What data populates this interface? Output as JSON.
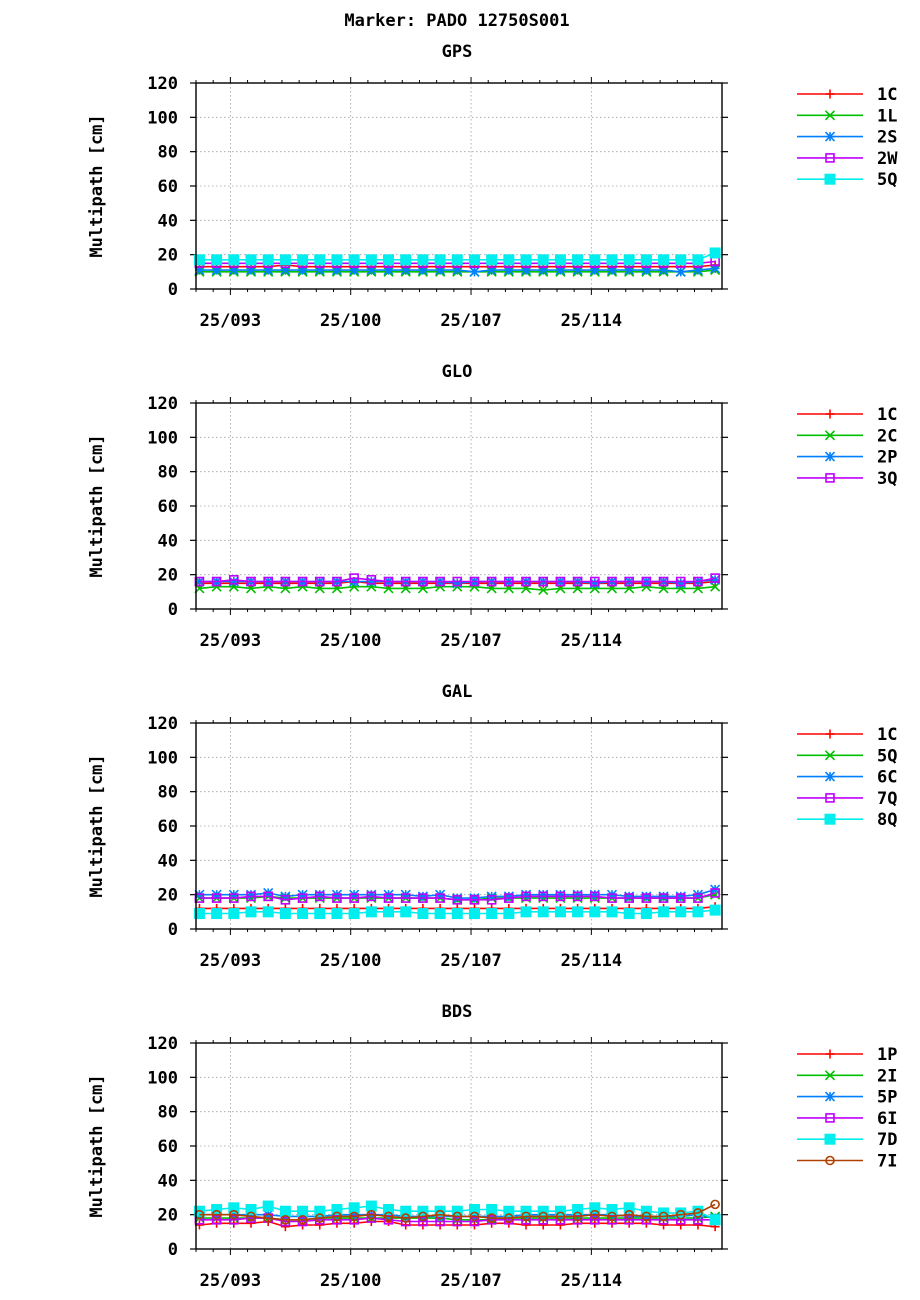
{
  "figure_title": "Marker: PADO 12750S001",
  "chart_data": [
    {
      "type": "line",
      "title": "GPS",
      "ylabel": "Multipath [cm]",
      "xlabel": "",
      "ylim": [
        0,
        120
      ],
      "yticks": [
        0,
        20,
        40,
        60,
        80,
        100,
        120
      ],
      "xlim": [
        91,
        121.6
      ],
      "xticks": [
        {
          "value": 93,
          "label": "25/093"
        },
        {
          "value": 100,
          "label": "25/100"
        },
        {
          "value": 107,
          "label": "25/107"
        },
        {
          "value": 114,
          "label": "25/114"
        }
      ],
      "grid": true,
      "legend_position": "right",
      "x": [
        91.2,
        92.2,
        93.2,
        94.2,
        95.2,
        96.2,
        97.2,
        98.2,
        99.2,
        100.2,
        101.2,
        102.2,
        103.2,
        104.2,
        105.2,
        106.2,
        107.2,
        108.2,
        109.2,
        110.2,
        111.2,
        112.2,
        113.2,
        114.2,
        115.2,
        116.2,
        117.2,
        118.2,
        119.2,
        120.2,
        121.2
      ],
      "series": [
        {
          "name": "1C",
          "color": "#ff0000",
          "marker": "plus",
          "values": [
            13,
            13,
            13,
            13,
            13,
            14,
            13,
            13,
            13,
            13,
            13,
            13,
            13,
            13,
            13,
            13,
            13,
            13,
            13,
            13,
            13,
            13,
            13,
            13,
            13,
            13,
            13,
            13,
            13,
            13,
            14
          ]
        },
        {
          "name": "1L",
          "color": "#00c000",
          "marker": "x",
          "values": [
            10,
            10,
            10,
            10,
            10,
            10,
            10,
            10,
            10,
            10,
            10,
            10,
            10,
            10,
            10,
            10,
            10,
            10,
            10,
            10,
            10,
            10,
            10,
            10,
            10,
            10,
            10,
            10,
            10,
            10,
            11
          ]
        },
        {
          "name": "2S",
          "color": "#0080ff",
          "marker": "star",
          "values": [
            11,
            11,
            11,
            11,
            11,
            11,
            11,
            11,
            11,
            11,
            11,
            11,
            11,
            11,
            11,
            11,
            10,
            11,
            11,
            11,
            11,
            11,
            11,
            11,
            11,
            11,
            11,
            11,
            10,
            11,
            12
          ]
        },
        {
          "name": "2W",
          "color": "#c000ff",
          "marker": "square",
          "values": [
            15,
            15,
            15,
            15,
            15,
            15,
            15,
            15,
            15,
            15,
            15,
            15,
            15,
            15,
            15,
            15,
            15,
            15,
            15,
            15,
            15,
            15,
            15,
            15,
            15,
            15,
            15,
            15,
            15,
            15,
            16
          ]
        },
        {
          "name": "5Q",
          "color": "#00eeee",
          "marker": "filled-square",
          "values": [
            17,
            17,
            17,
            17,
            17,
            17,
            17,
            17,
            17,
            17,
            17,
            17,
            17,
            17,
            17,
            17,
            17,
            17,
            17,
            17,
            17,
            17,
            17,
            17,
            17,
            17,
            17,
            17,
            17,
            17,
            21
          ]
        }
      ]
    },
    {
      "type": "line",
      "title": "GLO",
      "ylabel": "Multipath [cm]",
      "xlabel": "",
      "ylim": [
        0,
        120
      ],
      "yticks": [
        0,
        20,
        40,
        60,
        80,
        100,
        120
      ],
      "xlim": [
        91,
        121.6
      ],
      "xticks": [
        {
          "value": 93,
          "label": "25/093"
        },
        {
          "value": 100,
          "label": "25/100"
        },
        {
          "value": 107,
          "label": "25/107"
        },
        {
          "value": 114,
          "label": "25/114"
        }
      ],
      "grid": true,
      "legend_position": "right",
      "x": [
        91.2,
        92.2,
        93.2,
        94.2,
        95.2,
        96.2,
        97.2,
        98.2,
        99.2,
        100.2,
        101.2,
        102.2,
        103.2,
        104.2,
        105.2,
        106.2,
        107.2,
        108.2,
        109.2,
        110.2,
        111.2,
        112.2,
        113.2,
        114.2,
        115.2,
        116.2,
        117.2,
        118.2,
        119.2,
        120.2,
        121.2
      ],
      "series": [
        {
          "name": "1C",
          "color": "#ff0000",
          "marker": "plus",
          "values": [
            15,
            15,
            15,
            15,
            15,
            15,
            15,
            15,
            15,
            16,
            15,
            15,
            15,
            15,
            15,
            15,
            15,
            15,
            15,
            15,
            15,
            15,
            15,
            15,
            15,
            15,
            15,
            15,
            15,
            15,
            16
          ]
        },
        {
          "name": "2C",
          "color": "#00c000",
          "marker": "x",
          "values": [
            12,
            13,
            13,
            12,
            13,
            12,
            13,
            12,
            12,
            13,
            13,
            12,
            12,
            12,
            13,
            13,
            13,
            12,
            12,
            12,
            11,
            12,
            12,
            12,
            12,
            12,
            13,
            12,
            12,
            12,
            13
          ]
        },
        {
          "name": "2P",
          "color": "#0080ff",
          "marker": "star",
          "values": [
            16,
            16,
            16,
            16,
            16,
            16,
            16,
            16,
            16,
            16,
            16,
            16,
            16,
            16,
            16,
            15,
            16,
            16,
            16,
            16,
            16,
            16,
            16,
            15,
            16,
            16,
            16,
            16,
            15,
            16,
            17
          ]
        },
        {
          "name": "3Q",
          "color": "#c000ff",
          "marker": "square",
          "values": [
            16,
            16,
            17,
            16,
            16,
            16,
            16,
            16,
            16,
            18,
            17,
            16,
            16,
            16,
            16,
            16,
            16,
            16,
            16,
            16,
            16,
            16,
            16,
            16,
            16,
            16,
            16,
            16,
            16,
            16,
            18
          ]
        }
      ]
    },
    {
      "type": "line",
      "title": "GAL",
      "ylabel": "Multipath [cm]",
      "xlabel": "",
      "ylim": [
        0,
        120
      ],
      "yticks": [
        0,
        20,
        40,
        60,
        80,
        100,
        120
      ],
      "xlim": [
        91,
        121.6
      ],
      "xticks": [
        {
          "value": 93,
          "label": "25/093"
        },
        {
          "value": 100,
          "label": "25/100"
        },
        {
          "value": 107,
          "label": "25/107"
        },
        {
          "value": 114,
          "label": "25/114"
        }
      ],
      "grid": true,
      "legend_position": "right",
      "x": [
        91.2,
        92.2,
        93.2,
        94.2,
        95.2,
        96.2,
        97.2,
        98.2,
        99.2,
        100.2,
        101.2,
        102.2,
        103.2,
        104.2,
        105.2,
        106.2,
        107.2,
        108.2,
        109.2,
        110.2,
        111.2,
        112.2,
        113.2,
        114.2,
        115.2,
        116.2,
        117.2,
        118.2,
        119.2,
        120.2,
        121.2
      ],
      "series": [
        {
          "name": "1C",
          "color": "#ff0000",
          "marker": "plus",
          "values": [
            12,
            12,
            12,
            12,
            12,
            12,
            12,
            12,
            12,
            12,
            12,
            12,
            12,
            12,
            12,
            12,
            12,
            12,
            12,
            12,
            12,
            12,
            12,
            12,
            12,
            12,
            12,
            12,
            12,
            12,
            13
          ]
        },
        {
          "name": "5Q",
          "color": "#00c000",
          "marker": "x",
          "values": [
            18,
            18,
            18,
            18,
            19,
            18,
            18,
            18,
            18,
            18,
            18,
            18,
            18,
            18,
            18,
            17,
            17,
            18,
            18,
            18,
            18,
            18,
            18,
            18,
            18,
            18,
            18,
            18,
            18,
            18,
            20
          ]
        },
        {
          "name": "6C",
          "color": "#0080ff",
          "marker": "star",
          "values": [
            20,
            20,
            20,
            20,
            21,
            19,
            20,
            20,
            20,
            20,
            20,
            20,
            20,
            19,
            20,
            18,
            18,
            19,
            19,
            20,
            20,
            20,
            20,
            20,
            20,
            19,
            19,
            19,
            19,
            20,
            23
          ]
        },
        {
          "name": "7Q",
          "color": "#c000ff",
          "marker": "square",
          "values": [
            18,
            18,
            18,
            19,
            19,
            17,
            18,
            19,
            18,
            18,
            19,
            18,
            18,
            18,
            18,
            17,
            17,
            17,
            18,
            19,
            19,
            19,
            19,
            19,
            18,
            18,
            18,
            18,
            18,
            18,
            21
          ]
        },
        {
          "name": "8Q",
          "color": "#00eeee",
          "marker": "filled-square",
          "values": [
            9,
            9,
            9,
            10,
            10,
            9,
            9,
            9,
            9,
            9,
            10,
            10,
            10,
            9,
            9,
            9,
            9,
            9,
            9,
            10,
            10,
            10,
            10,
            10,
            10,
            9,
            9,
            10,
            10,
            10,
            11
          ]
        }
      ]
    },
    {
      "type": "line",
      "title": "BDS",
      "ylabel": "Multipath [cm]",
      "xlabel": "",
      "ylim": [
        0,
        120
      ],
      "yticks": [
        0,
        20,
        40,
        60,
        80,
        100,
        120
      ],
      "xlim": [
        91,
        121.6
      ],
      "xticks": [
        {
          "value": 93,
          "label": "25/093"
        },
        {
          "value": 100,
          "label": "25/100"
        },
        {
          "value": 107,
          "label": "25/107"
        },
        {
          "value": 114,
          "label": "25/114"
        }
      ],
      "grid": true,
      "legend_position": "right",
      "x": [
        91.2,
        92.2,
        93.2,
        94.2,
        95.2,
        96.2,
        97.2,
        98.2,
        99.2,
        100.2,
        101.2,
        102.2,
        103.2,
        104.2,
        105.2,
        106.2,
        107.2,
        108.2,
        109.2,
        110.2,
        111.2,
        112.2,
        113.2,
        114.2,
        115.2,
        116.2,
        117.2,
        118.2,
        119.2,
        120.2,
        121.2
      ],
      "series": [
        {
          "name": "1P",
          "color": "#ff0000",
          "marker": "plus",
          "values": [
            14,
            15,
            15,
            15,
            16,
            13,
            14,
            14,
            15,
            15,
            16,
            16,
            14,
            14,
            14,
            14,
            14,
            15,
            15,
            14,
            14,
            14,
            15,
            15,
            15,
            15,
            15,
            14,
            14,
            14,
            13
          ]
        },
        {
          "name": "2I",
          "color": "#00c000",
          "marker": "x",
          "values": [
            18,
            18,
            18,
            18,
            18,
            17,
            17,
            18,
            18,
            18,
            18,
            18,
            18,
            18,
            18,
            17,
            17,
            17,
            18,
            18,
            18,
            18,
            18,
            18,
            18,
            18,
            18,
            18,
            18,
            18,
            19
          ]
        },
        {
          "name": "5P",
          "color": "#0080ff",
          "marker": "star",
          "values": [
            20,
            20,
            20,
            20,
            20,
            19,
            19,
            19,
            20,
            20,
            20,
            20,
            19,
            19,
            19,
            19,
            19,
            19,
            19,
            20,
            20,
            20,
            20,
            20,
            20,
            19,
            19,
            19,
            19,
            20,
            18
          ]
        },
        {
          "name": "6I",
          "color": "#c000ff",
          "marker": "square",
          "values": [
            17,
            17,
            17,
            18,
            18,
            16,
            16,
            17,
            17,
            17,
            18,
            17,
            16,
            16,
            16,
            16,
            16,
            17,
            17,
            17,
            17,
            17,
            17,
            17,
            17,
            17,
            17,
            17,
            17,
            17,
            17
          ]
        },
        {
          "name": "7D",
          "color": "#00eeee",
          "marker": "filled-square",
          "values": [
            22,
            23,
            24,
            23,
            25,
            22,
            22,
            22,
            23,
            24,
            25,
            23,
            22,
            22,
            22,
            22,
            23,
            23,
            22,
            22,
            22,
            22,
            23,
            24,
            23,
            24,
            22,
            21,
            21,
            22,
            17
          ]
        },
        {
          "name": "7I",
          "color": "#b04000",
          "marker": "circle",
          "values": [
            20,
            20,
            20,
            19,
            18,
            17,
            17,
            18,
            19,
            19,
            20,
            19,
            18,
            19,
            20,
            19,
            19,
            18,
            18,
            19,
            19,
            19,
            19,
            20,
            19,
            20,
            19,
            19,
            20,
            21,
            26
          ]
        }
      ]
    }
  ]
}
